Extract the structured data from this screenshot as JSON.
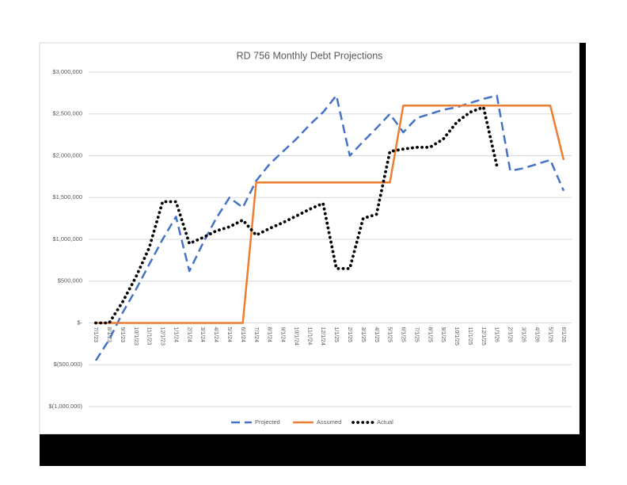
{
  "chart_data": {
    "type": "line",
    "title": "RD 756 Monthly Debt Projections",
    "categories": [
      "7/1/23",
      "8/1/23",
      "9/1/23",
      "10/1/23",
      "11/1/23",
      "12/1/23",
      "1/1/24",
      "2/1/24",
      "3/1/24",
      "4/1/24",
      "5/1/24",
      "6/1/24",
      "7/1/24",
      "8/1/24",
      "9/1/24",
      "10/1/24",
      "11/1/24",
      "12/1/24",
      "1/1/25",
      "2/1/25",
      "3/1/25",
      "4/1/25",
      "5/1/25",
      "6/1/25",
      "7/1/25",
      "8/1/25",
      "9/1/25",
      "10/1/25",
      "11/1/25",
      "12/1/25",
      "1/1/26",
      "2/1/26",
      "3/1/26",
      "4/1/26",
      "5/1/26",
      "6/1/26"
    ],
    "series": [
      {
        "name": "Projected",
        "color": "#4472c4",
        "style": "dashed",
        "values": [
          -450000,
          -200000,
          120000,
          400000,
          700000,
          1000000,
          1270000,
          620000,
          950000,
          1250000,
          1500000,
          1380000,
          1700000,
          1900000,
          2050000,
          2200000,
          2370000,
          2520000,
          2720000,
          2000000,
          2170000,
          2330000,
          2500000,
          2280000,
          2450000,
          2500000,
          2550000,
          2580000,
          2630000,
          2680000,
          2720000,
          1820000,
          1850000,
          1900000,
          1950000,
          1580000
        ]
      },
      {
        "name": "Assumed",
        "color": "#ed7d31",
        "style": "solid",
        "values": [
          0,
          0,
          0,
          0,
          0,
          0,
          0,
          0,
          0,
          0,
          0,
          0,
          1680000,
          1680000,
          1680000,
          1680000,
          1680000,
          1680000,
          1680000,
          1680000,
          1680000,
          1680000,
          1680000,
          2600000,
          2600000,
          2600000,
          2600000,
          2600000,
          2600000,
          2600000,
          2600000,
          2600000,
          2600000,
          2600000,
          2600000,
          1950000
        ]
      },
      {
        "name": "Actual",
        "color": "#000000",
        "style": "dotted",
        "values": [
          0,
          0,
          250000,
          550000,
          900000,
          1450000,
          1450000,
          950000,
          1020000,
          1100000,
          1150000,
          1230000,
          1050000,
          1130000,
          1200000,
          1280000,
          1360000,
          1430000,
          650000,
          650000,
          1250000,
          1300000,
          2050000,
          2080000,
          2100000,
          2100000,
          2200000,
          2400000,
          2520000,
          2580000,
          1880000,
          null,
          null,
          null,
          null,
          null
        ]
      }
    ],
    "ylim": [
      -1000000,
      3000000
    ],
    "yticks": [
      {
        "value": -1000000,
        "label": "$(1,000,000)"
      },
      {
        "value": -500000,
        "label": "$(500,000)"
      },
      {
        "value": 0,
        "label": "$-"
      },
      {
        "value": 500000,
        "label": "$500,000"
      },
      {
        "value": 1000000,
        "label": "$1,000,000"
      },
      {
        "value": 1500000,
        "label": "$1,500,000"
      },
      {
        "value": 2000000,
        "label": "$2,000,000"
      },
      {
        "value": 2500000,
        "label": "$2,500,000"
      },
      {
        "value": 3000000,
        "label": "$3,000,000"
      }
    ],
    "grid": true,
    "legend": "bottom"
  }
}
